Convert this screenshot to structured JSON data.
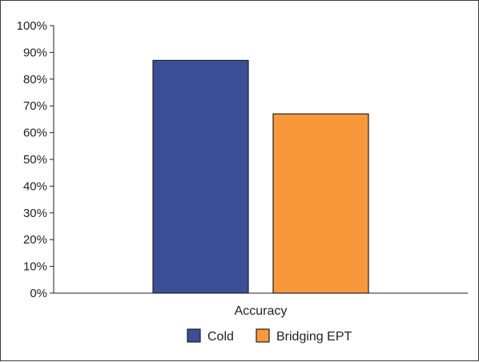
{
  "chart_data": {
    "type": "bar",
    "categories": [
      "Accuracy"
    ],
    "series": [
      {
        "name": "Cold",
        "values": [
          87
        ],
        "color": "#3a4f96"
      },
      {
        "name": "Bridging EPT",
        "values": [
          67
        ],
        "color": "#f7993a"
      }
    ],
    "title": "",
    "xlabel": "",
    "ylabel": "",
    "ylim": [
      0,
      100
    ],
    "yticks": [
      "0%",
      "10%",
      "20%",
      "30%",
      "40%",
      "50%",
      "60%",
      "70%",
      "80%",
      "90%",
      "100%"
    ],
    "grid": false,
    "legend_position": "bottom"
  }
}
